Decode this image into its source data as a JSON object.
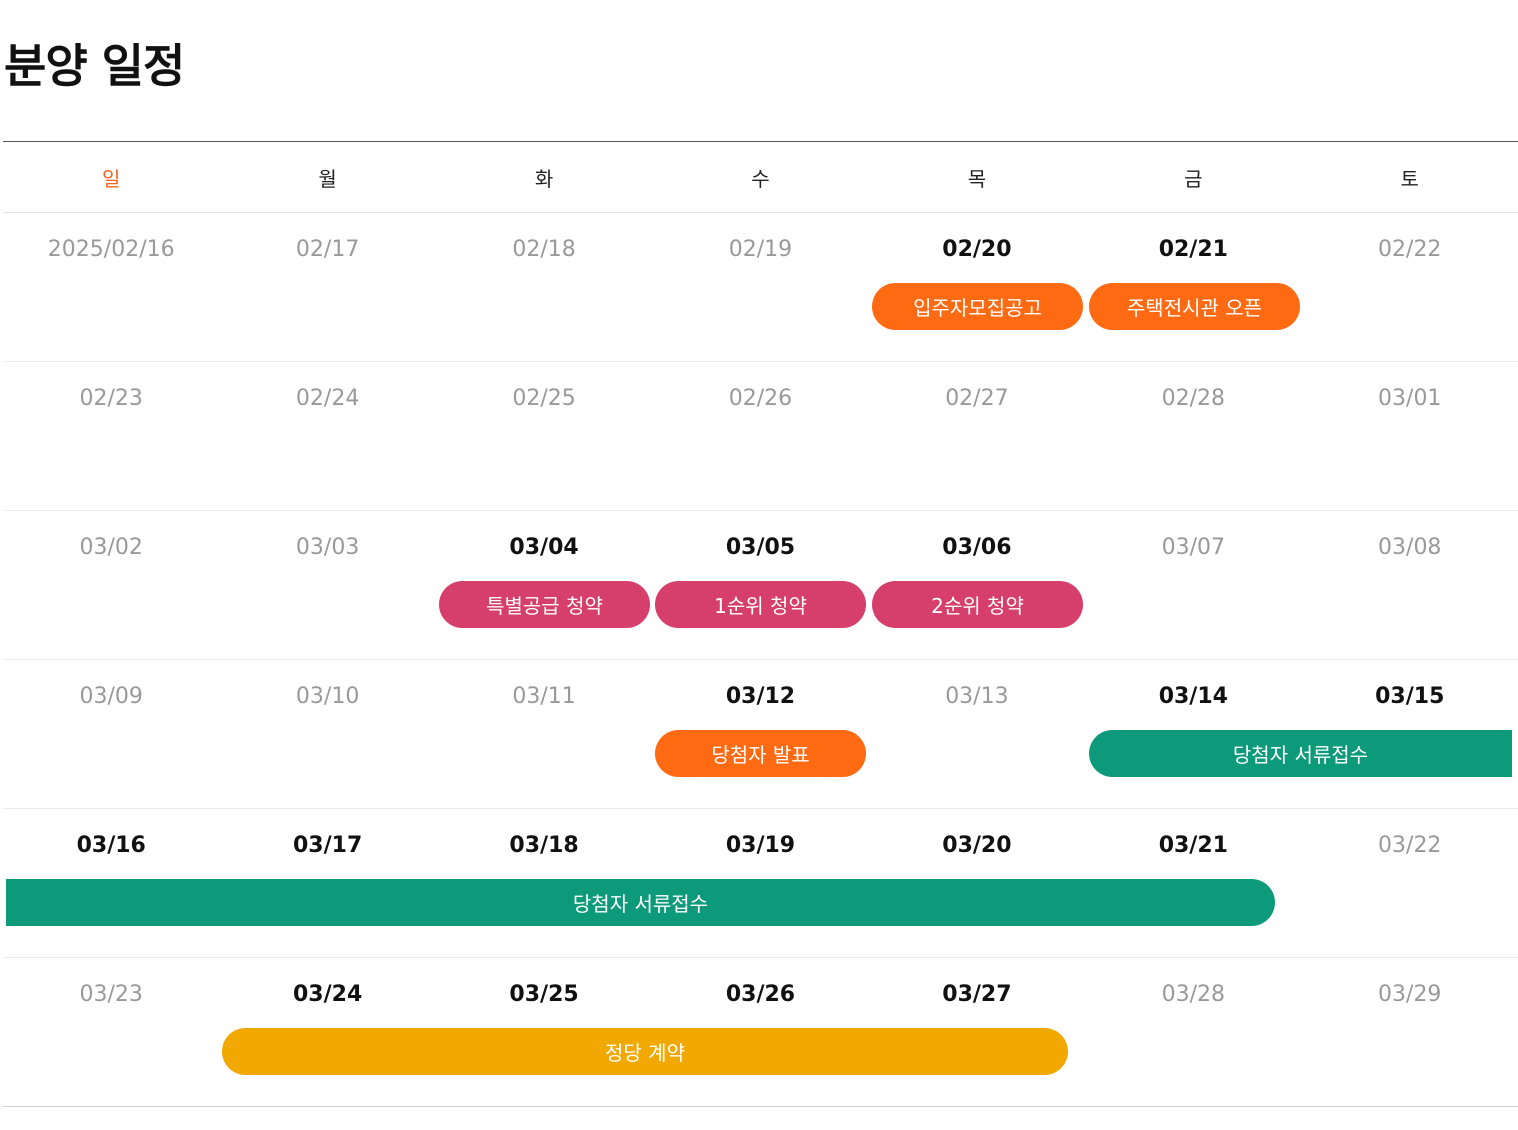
{
  "page": {
    "title": "분양 일정"
  },
  "weekdays": [
    "일",
    "월",
    "화",
    "수",
    "목",
    "금",
    "토"
  ],
  "weeks": [
    {
      "dates": [
        "2025/02/16",
        "02/17",
        "02/18",
        "02/19",
        "02/20",
        "02/21",
        "02/22"
      ],
      "events": [
        {
          "label": "입주자모집공고",
          "color": "orange",
          "start_day": 4,
          "span_days": 1
        },
        {
          "label": "주택전시관 오픈",
          "color": "orange",
          "start_day": 5,
          "span_days": 1
        }
      ]
    },
    {
      "dates": [
        "02/23",
        "02/24",
        "02/25",
        "02/26",
        "02/27",
        "02/28",
        "03/01"
      ],
      "events": []
    },
    {
      "dates": [
        "03/02",
        "03/03",
        "03/04",
        "03/05",
        "03/06",
        "03/07",
        "03/08"
      ],
      "events": [
        {
          "label": "특별공급 청약",
          "color": "pink",
          "start_day": 2,
          "span_days": 1
        },
        {
          "label": "1순위 청약",
          "color": "pink",
          "start_day": 3,
          "span_days": 1
        },
        {
          "label": "2순위 청약",
          "color": "pink",
          "start_day": 4,
          "span_days": 1
        }
      ]
    },
    {
      "dates": [
        "03/09",
        "03/10",
        "03/11",
        "03/12",
        "03/13",
        "03/14",
        "03/15"
      ],
      "events": [
        {
          "label": "당첨자 발표",
          "color": "orange",
          "start_day": 3,
          "span_days": 1
        },
        {
          "label": "당첨자 서류접수",
          "color": "green",
          "start_day": 5,
          "span_days": 2,
          "continues_next_week": true
        }
      ]
    },
    {
      "dates": [
        "03/16",
        "03/17",
        "03/18",
        "03/19",
        "03/20",
        "03/21",
        "03/22"
      ],
      "events": [
        {
          "label": "당첨자 서류접수",
          "color": "green",
          "start_day": 0,
          "span_days": 6,
          "continues_from_prev_week": true
        }
      ]
    },
    {
      "dates": [
        "03/23",
        "03/24",
        "03/25",
        "03/26",
        "03/27",
        "03/28",
        "03/29"
      ],
      "events": [
        {
          "label": "정당 계약",
          "color": "yellow",
          "start_day": 1,
          "span_days": 4
        }
      ]
    }
  ],
  "colors": {
    "orange": "#ff6a13",
    "pink": "#d63e6c",
    "green": "#0d9a7a",
    "yellow": "#f1a800",
    "sunday": "#f26522"
  }
}
